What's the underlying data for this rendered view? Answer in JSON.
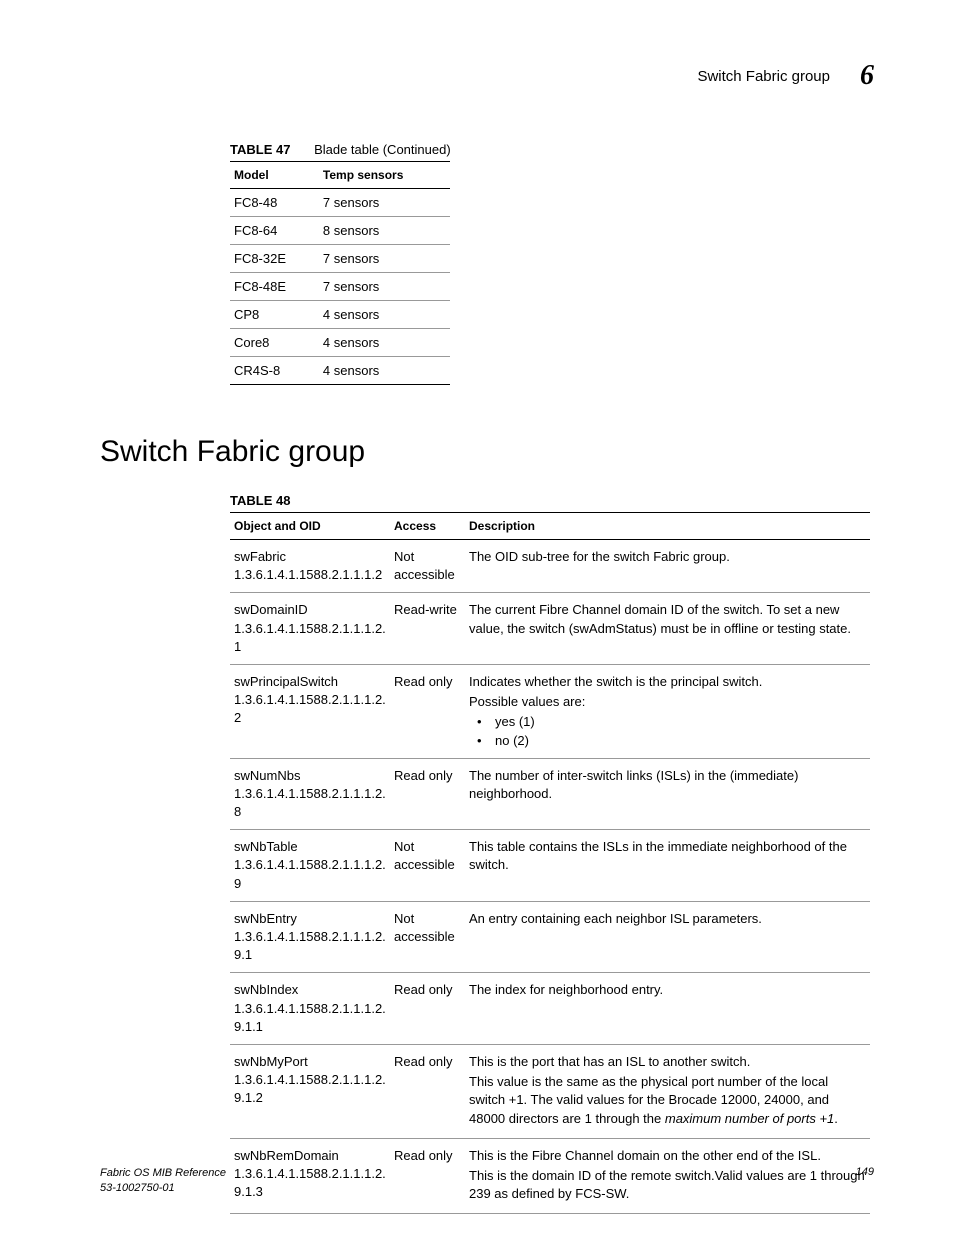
{
  "header": {
    "title": "Switch Fabric group",
    "chapter": "6"
  },
  "table47": {
    "label": "TABLE 47",
    "caption": "Blade table (Continued)",
    "headers": {
      "col1": "Model",
      "col2": "Temp sensors"
    },
    "rows": [
      {
        "model": "FC8-48",
        "sensors": "7 sensors"
      },
      {
        "model": "FC8-64",
        "sensors": "8 sensors"
      },
      {
        "model": "FC8-32E",
        "sensors": "7 sensors"
      },
      {
        "model": "FC8-48E",
        "sensors": "7 sensors"
      },
      {
        "model": "CP8",
        "sensors": "4 sensors"
      },
      {
        "model": "Core8",
        "sensors": "4 sensors"
      },
      {
        "model": "CR4S-8",
        "sensors": "4 sensors"
      }
    ]
  },
  "section_heading": "Switch Fabric group",
  "table48": {
    "label": "TABLE 48",
    "headers": {
      "col1": "Object and OID",
      "col2": "Access",
      "col3": "Description"
    },
    "rows": [
      {
        "name": "swFabric",
        "oid": "1.3.6.1.4.1.1588.2.1.1.1.2",
        "access": "Not accessible",
        "desc": "The OID sub-tree for the switch Fabric group."
      },
      {
        "name": "swDomainID",
        "oid": "1.3.6.1.4.1.1588.2.1.1.1.2.1",
        "access": "Read-write",
        "desc": "The current Fibre Channel domain ID of the switch. To set a new value, the switch (swAdmStatus) must be in offline or testing state."
      },
      {
        "name": "swPrincipalSwitch",
        "oid": "1.3.6.1.4.1.1588.2.1.1.1.2.2",
        "access": "Read only",
        "desc": "Indicates whether the switch is the principal switch.",
        "desc2": "Possible values are:",
        "bullets": [
          "yes (1)",
          "no (2)"
        ]
      },
      {
        "name": "swNumNbs",
        "oid": "1.3.6.1.4.1.1588.2.1.1.1.2.8",
        "access": "Read only",
        "desc": "The number of inter-switch links (ISLs) in the (immediate) neighborhood."
      },
      {
        "name": "swNbTable",
        "oid": "1.3.6.1.4.1.1588.2.1.1.1.2.9",
        "access": "Not accessible",
        "desc": "This table contains the ISLs in the immediate neighborhood of the switch."
      },
      {
        "name": "swNbEntry",
        "oid": "1.3.6.1.4.1.1588.2.1.1.1.2.9.1",
        "access": "Not accessible",
        "desc": "An entry containing each neighbor ISL parameters."
      },
      {
        "name": "swNbIndex",
        "oid": "1.3.6.1.4.1.1588.2.1.1.1.2.9.1.1",
        "access": "Read only",
        "desc": "The index for neighborhood entry."
      },
      {
        "name": "swNbMyPort",
        "oid": "1.3.6.1.4.1.1588.2.1.1.1.2.9.1.2",
        "access": "Read only",
        "desc": "This is the port that has an ISL to another switch.",
        "desc2_pre": "This value is the same as the physical port number of the local switch +1. The valid values for the Brocade 12000, 24000, and 48000 directors are 1 through the ",
        "desc2_italic": "maximum number of ports +1",
        "desc2_post": "."
      },
      {
        "name": "swNbRemDomain",
        "oid": "1.3.6.1.4.1.1588.2.1.1.1.2.9.1.3",
        "access": "Read only",
        "desc": "This is the Fibre Channel domain on the other end of the ISL.",
        "desc2": "This is the domain ID of the remote switch.Valid values are 1 through 239 as defined by FCS-SW."
      }
    ]
  },
  "footer": {
    "doc_title": "Fabric OS MIB Reference",
    "doc_num": "53-1002750-01",
    "page_num": "149"
  }
}
